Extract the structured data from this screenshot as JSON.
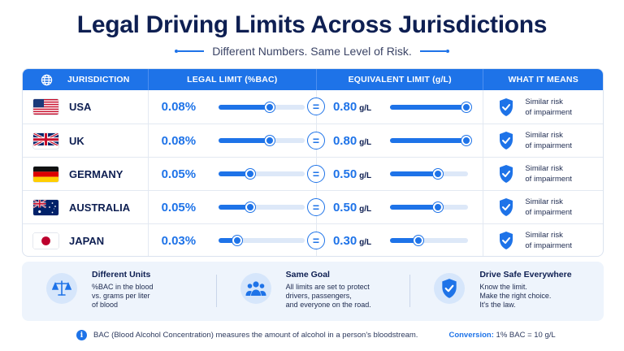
{
  "header": {
    "title": "Legal Driving Limits Across Jurisdictions",
    "subtitle": "Different Numbers. Same Level of Risk."
  },
  "table": {
    "columns": {
      "jurisdiction": "JURISDICTION",
      "legal_limit": "LEGAL LIMIT (%BAC)",
      "equivalent": "EQUIVALENT LIMIT (g/L)",
      "means": "WHAT IT MEANS"
    },
    "equals_symbol": "=",
    "rows": [
      {
        "country": "USA",
        "flag": "usa-flag",
        "bac": "0.08%",
        "bac_level": 0.08,
        "gl": "0.80",
        "gl_unit": "g/L",
        "gl_level": 0.8,
        "means_line1": "Similar risk",
        "means_line2": "of impairment"
      },
      {
        "country": "UK",
        "flag": "uk-flag",
        "bac": "0.08%",
        "bac_level": 0.08,
        "gl": "0.80",
        "gl_unit": "g/L",
        "gl_level": 0.8,
        "means_line1": "Similar risk",
        "means_line2": "of impairment"
      },
      {
        "country": "GERMANY",
        "flag": "germany-flag",
        "bac": "0.05%",
        "bac_level": 0.05,
        "gl": "0.50",
        "gl_unit": "g/L",
        "gl_level": 0.5,
        "means_line1": "Similar risk",
        "means_line2": "of impairment"
      },
      {
        "country": "AUSTRALIA",
        "flag": "australia-flag",
        "bac": "0.05%",
        "bac_level": 0.05,
        "gl": "0.50",
        "gl_unit": "g/L",
        "gl_level": 0.5,
        "means_line1": "Similar risk",
        "means_line2": "of impairment"
      },
      {
        "country": "JAPAN",
        "flag": "japan-flag",
        "bac": "0.03%",
        "bac_level": 0.03,
        "gl": "0.30",
        "gl_unit": "g/L",
        "gl_level": 0.3,
        "means_line1": "Similar risk",
        "means_line2": "of impairment"
      }
    ]
  },
  "info": [
    {
      "icon": "scale-icon",
      "title": "Different Units",
      "text": "%BAC in the blood\nvs. grams per liter\nof blood"
    },
    {
      "icon": "people-icon",
      "title": "Same Goal",
      "text": "All limits are set to protect\ndrivers, passengers,\nand everyone on the road."
    },
    {
      "icon": "shield-check-icon",
      "title": "Drive Safe Everywhere",
      "text": "Know the limit.\nMake the right choice.\nIt's the law."
    }
  ],
  "footer": {
    "note": "BAC (Blood Alcohol Concentration) measures the amount of alcohol in a person's bloodstream.",
    "conversion_label": "Conversion:",
    "conversion_value": "1% BAC = 10 g/L"
  },
  "colors": {
    "accent": "#1e73e8",
    "navy": "#0e1f52",
    "track": "#dde8f8",
    "panel": "#eef4fc"
  }
}
